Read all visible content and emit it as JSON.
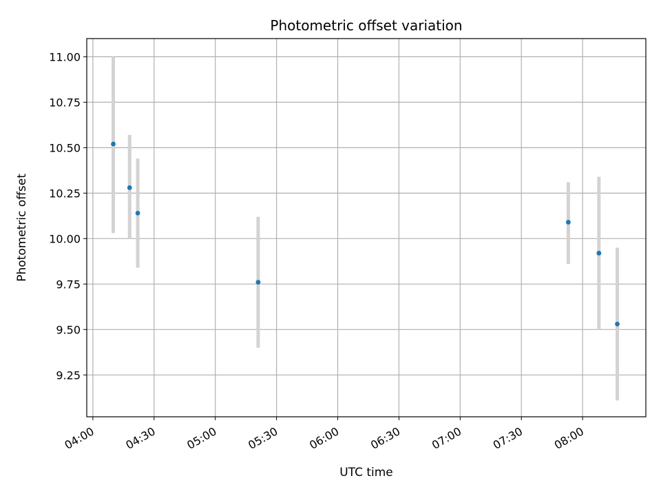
{
  "chart_data": {
    "type": "scatter",
    "title": "Photometric offset variation",
    "xlabel": "UTC time",
    "ylabel": "Photometric offset",
    "x_axis_type": "time",
    "xlim": [
      "03:57",
      "08:31"
    ],
    "ylim": [
      9.02,
      11.1
    ],
    "x_ticks": [
      "04:00",
      "04:30",
      "05:00",
      "05:30",
      "06:00",
      "06:30",
      "07:00",
      "07:30",
      "08:00"
    ],
    "y_ticks": [
      9.25,
      9.5,
      9.75,
      10.0,
      10.25,
      10.5,
      10.75,
      11.0
    ],
    "y_tick_labels": [
      "9.25",
      "9.50",
      "9.75",
      "10.00",
      "10.25",
      "10.50",
      "10.75",
      "11.00"
    ],
    "grid": true,
    "marker_color": "#1f77b4",
    "errorbar_color": "#d3d3d3",
    "series": [
      {
        "x": [
          "04:10",
          "04:18",
          "04:22",
          "05:21",
          "07:53",
          "08:08",
          "08:17"
        ],
        "y": [
          10.52,
          10.28,
          10.14,
          9.76,
          10.09,
          9.92,
          9.53
        ],
        "y_low": [
          10.03,
          10.0,
          9.84,
          9.4,
          9.86,
          9.5,
          9.11
        ],
        "y_high": [
          11.0,
          10.57,
          10.44,
          10.12,
          10.31,
          10.34,
          9.95
        ]
      }
    ]
  }
}
